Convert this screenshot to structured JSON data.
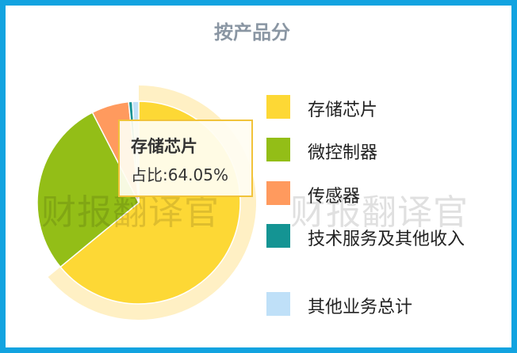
{
  "chart_data": {
    "type": "pie",
    "title": "按产品分",
    "series": [
      {
        "name": "存储芯片",
        "value": 64.05,
        "color": "#fdd835"
      },
      {
        "name": "微控制器",
        "value": 28.4,
        "color": "#93be17"
      },
      {
        "name": "传感器",
        "value": 5.95,
        "color": "#ff9a5e"
      },
      {
        "name": "技术服务及其他收入",
        "value": 0.6,
        "color": "#149493"
      },
      {
        "name": "其他业务总计",
        "value": 1.0,
        "color": "#bfe0f8"
      }
    ],
    "highlight_index": 0,
    "highlight_color": "#fff0c4",
    "legend_position": "right"
  },
  "tooltip": {
    "name": "存储芯片",
    "text": "占比:64.05%"
  },
  "watermark": {
    "left_text": "财报翻译官",
    "right_text": "财报翻译官"
  },
  "frame_color": "#12a3e0"
}
